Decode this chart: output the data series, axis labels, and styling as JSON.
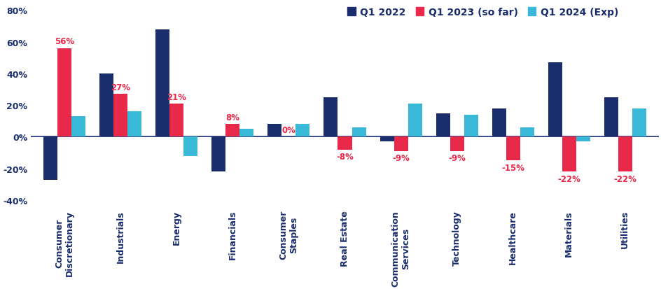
{
  "categories": [
    "Consumer\nDiscretionary",
    "Industrials",
    "Energy",
    "Financials",
    "Consumer\nStaples",
    "Real Estate",
    "Communication\nServices",
    "Technology",
    "Healthcare",
    "Materials",
    "Utilities"
  ],
  "q1_2022": [
    -27,
    40,
    68,
    -22,
    8,
    25,
    -3,
    15,
    18,
    47,
    25
  ],
  "q1_2023": [
    56,
    27,
    21,
    8,
    0,
    -8,
    -9,
    -9,
    -15,
    -22,
    -22
  ],
  "q1_2024": [
    13,
    16,
    -12,
    5,
    8,
    6,
    21,
    14,
    6,
    -3,
    18
  ],
  "q1_2022_color": "#1a2e6e",
  "q1_2023_color": "#e8294a",
  "q1_2024_color": "#3ab8d8",
  "labels_2023": [
    "56%",
    "27%",
    "21%",
    "8%",
    "0%",
    "-8%",
    "-9%",
    "-9%",
    "-15%",
    "-22%",
    "-22%"
  ],
  "legend_labels": [
    "Q1 2022",
    "Q1 2023 (so far)",
    "Q1 2024 (Exp)"
  ],
  "ylim": [
    -45,
    85
  ],
  "yticks": [
    -40,
    -20,
    0,
    20,
    40,
    60,
    80
  ],
  "ytick_labels": [
    "-40%",
    "-20%",
    "0%",
    "20%",
    "40%",
    "60%",
    "80%"
  ],
  "bar_width": 0.25,
  "label_fontsize": 8.5,
  "tick_fontsize": 9,
  "legend_fontsize": 10,
  "axis_color": "#1a2e6e",
  "background_color": "#ffffff"
}
